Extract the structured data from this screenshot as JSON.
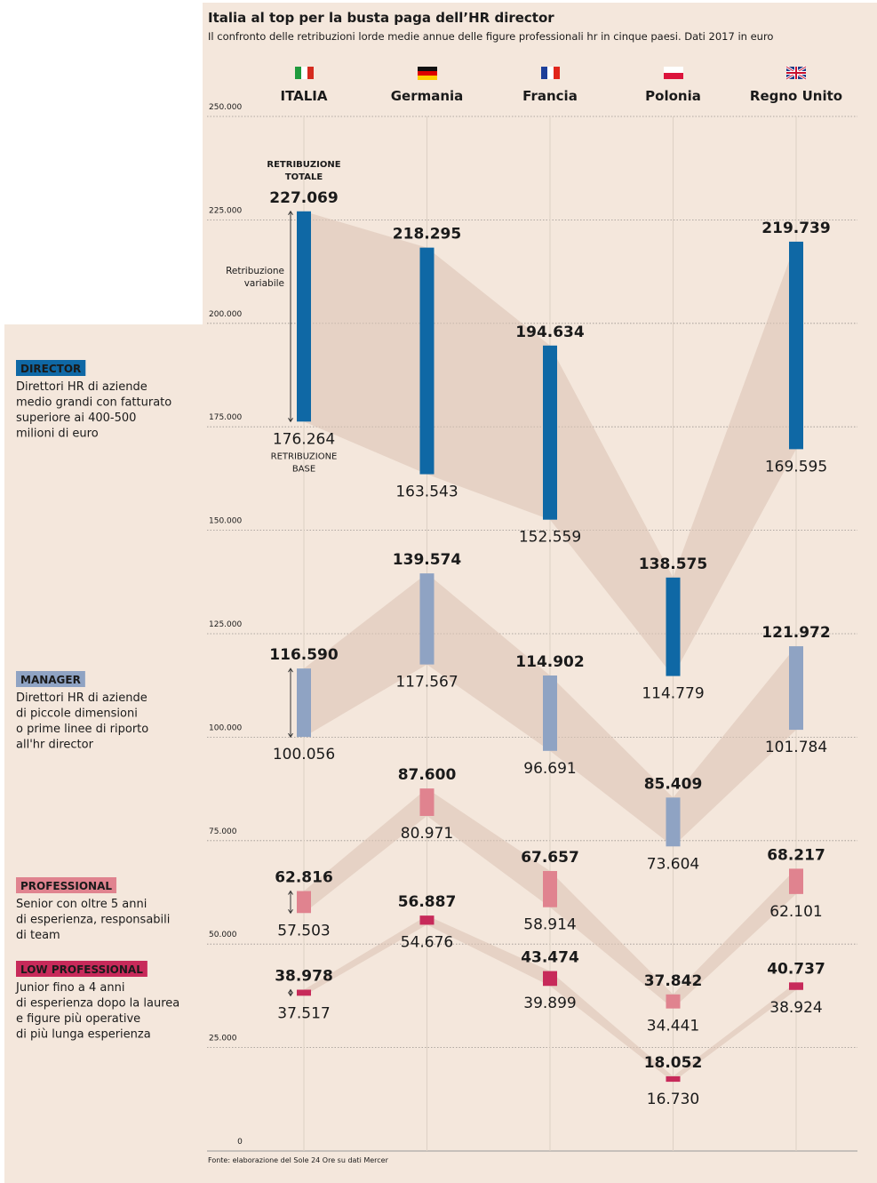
{
  "chart_data": {
    "type": "range",
    "title": "Italia al top per la busta paga dell’HR director",
    "subtitle": "Il confronto delle retribuzioni lorde medie annue delle figure professionali hr in cinque paesi. Dati 2017 in euro",
    "categories": [
      "ITALIA",
      "Germania",
      "Francia",
      "Polonia",
      "Regno Unito"
    ],
    "ylim": [
      0,
      250000
    ],
    "yticks": [
      0,
      {
        "value": 25000,
        "label": "25.000"
      },
      {
        "value": 50000,
        "label": "50.000"
      },
      {
        "value": 75000,
        "label": "75.000"
      },
      {
        "value": 100000,
        "label": "100.000"
      },
      {
        "value": 125000,
        "label": "125.000"
      },
      {
        "value": 150000,
        "label": "150.000"
      },
      {
        "value": 175000,
        "label": "175.000"
      },
      {
        "value": 200000,
        "label": "200.000"
      },
      {
        "value": 225000,
        "label": "225.000"
      },
      {
        "value": 250000,
        "label": "250.000"
      }
    ],
    "grid": true,
    "annotations": {
      "total": [
        "RETRIBUZIONE",
        "TOTALE"
      ],
      "base": [
        "RETRIBUZIONE",
        "BASE"
      ],
      "variable": [
        "Retribuzione",
        "variabile"
      ]
    },
    "source": "Fonte: elaborazione del Sole 24 Ore su dati Mercer",
    "series": [
      {
        "name": "DIRECTOR",
        "color": "#0f68a5",
        "description": [
          "Direttori HR di aziende",
          "medio grandi con fatturato",
          "superiore ai 400-500",
          "milioni di euro"
        ],
        "values": [
          227069,
          218295,
          194634,
          138575,
          219739
        ],
        "value_labels": [
          "227.069",
          "218.295",
          "194.634",
          "138.575",
          "219.739"
        ],
        "base_values": [
          176264,
          163543,
          152559,
          114779,
          169595
        ],
        "base_labels": [
          "176.264",
          "163.543",
          "152.559",
          "114.779",
          "169.595"
        ]
      },
      {
        "name": "MANAGER",
        "color": "#8fa3c3",
        "description": [
          "Direttori HR di aziende",
          "di piccole dimensioni",
          "o prime linee di riporto",
          "all'hr director"
        ],
        "values": [
          116590,
          139574,
          114902,
          85409,
          121972
        ],
        "value_labels": [
          "116.590",
          "139.574",
          "114.902",
          "85.409",
          "121.972"
        ],
        "base_values": [
          100056,
          117567,
          96691,
          73604,
          101784
        ],
        "base_labels": [
          "100.056",
          "117.567",
          "96.691",
          "73.604",
          "101.784"
        ]
      },
      {
        "name": "PROFESSIONAL",
        "color": "#e0838f",
        "description": [
          "Senior con oltre 5 anni",
          "di esperienza, responsabili",
          "di team"
        ],
        "values": [
          62816,
          87600,
          67657,
          37842,
          68217
        ],
        "value_labels": [
          "62.816",
          "87.600",
          "67.657",
          "37.842",
          "68.217"
        ],
        "base_values": [
          57503,
          80971,
          58914,
          34441,
          62101
        ],
        "base_labels": [
          "57.503",
          "80.971",
          "58.914",
          "34.441",
          "62.101"
        ]
      },
      {
        "name": "LOW PROFESSIONAL",
        "color": "#c72a5a",
        "description": [
          "Junior fino a 4 anni",
          "di esperienza dopo la laurea",
          "e figure più operative",
          "di più lunga esperienza"
        ],
        "values": [
          38978,
          56887,
          43474,
          18052,
          40737
        ],
        "value_labels": [
          "38.978",
          "56.887",
          "43.474",
          "18.052",
          "40.737"
        ],
        "base_values": [
          37517,
          54676,
          39899,
          16730,
          38924
        ],
        "base_labels": [
          "37.517",
          "54.676",
          "39.899",
          "16.730",
          "38.924"
        ]
      }
    ]
  }
}
